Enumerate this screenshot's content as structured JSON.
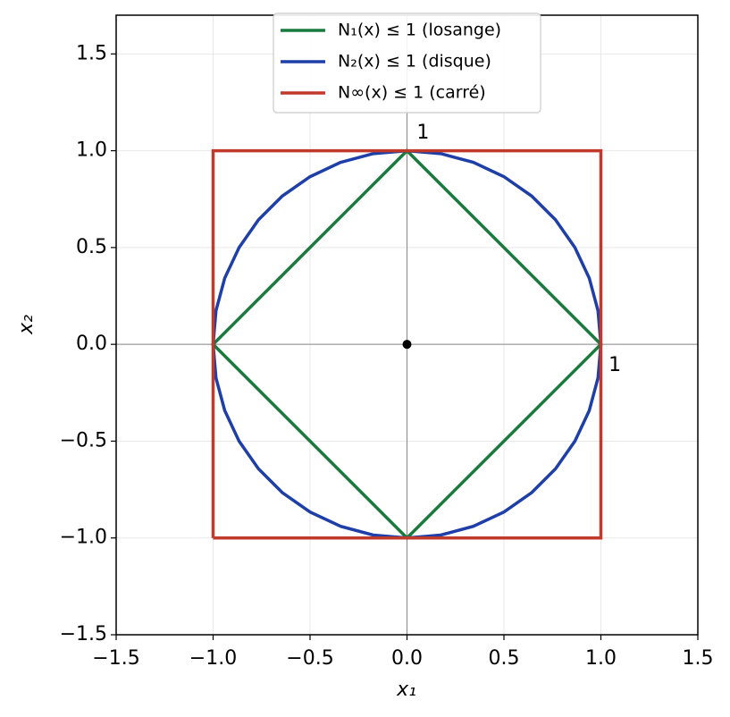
{
  "chart_data": {
    "type": "line",
    "xlabel": "x₁",
    "ylabel": "x₂",
    "xlim": [
      -1.5,
      1.5
    ],
    "ylim": [
      -1.5,
      1.7
    ],
    "xticks": [
      {
        "value": -1.5,
        "label": "−1.5"
      },
      {
        "value": -1.0,
        "label": "−1.0"
      },
      {
        "value": -0.5,
        "label": "−0.5"
      },
      {
        "value": 0,
        "label": "0.0"
      },
      {
        "value": 0.5,
        "label": "0.5"
      },
      {
        "value": 1.0,
        "label": "1.0"
      },
      {
        "value": 1.5,
        "label": "1.5"
      }
    ],
    "yticks": [
      {
        "value": -1.5,
        "label": "−1.5"
      },
      {
        "value": -1.0,
        "label": "−1.0"
      },
      {
        "value": -0.5,
        "label": "−0.5"
      },
      {
        "value": 0,
        "label": "0.0"
      },
      {
        "value": 0.5,
        "label": "0.5"
      },
      {
        "value": 1.0,
        "label": "1.0"
      },
      {
        "value": 1.5,
        "label": "1.5"
      }
    ],
    "grid": true,
    "zero_lines": true,
    "legend": "upper center",
    "series": [
      {
        "name": "N₁(x) ≤ 1 (losange)",
        "color": "#1a7a3e",
        "x": [
          1,
          0,
          -1,
          0,
          1
        ],
        "values": [
          0,
          1,
          0,
          -1,
          0
        ]
      },
      {
        "name": "N₂(x) ≤ 1 (disque)",
        "color": "#1f3fa8",
        "x": [
          1,
          0.985,
          0.94,
          0.866,
          0.766,
          0.643,
          0.5,
          0.342,
          0.174,
          0,
          -0.174,
          -0.342,
          -0.5,
          -0.643,
          -0.766,
          -0.866,
          -0.94,
          -0.985,
          -1,
          -0.985,
          -0.94,
          -0.866,
          -0.766,
          -0.643,
          -0.5,
          -0.342,
          -0.174,
          0,
          0.174,
          0.342,
          0.5,
          0.643,
          0.766,
          0.866,
          0.94,
          0.985,
          1
        ],
        "values": [
          0,
          0.174,
          0.342,
          0.5,
          0.643,
          0.766,
          0.866,
          0.94,
          0.985,
          1,
          0.985,
          0.94,
          0.866,
          0.766,
          0.643,
          0.5,
          0.342,
          0.174,
          0,
          -0.174,
          -0.342,
          -0.5,
          -0.643,
          -0.766,
          -0.866,
          -0.94,
          -0.985,
          -1,
          -0.985,
          -0.94,
          -0.866,
          -0.766,
          -0.643,
          -0.5,
          -0.342,
          -0.174,
          0
        ]
      },
      {
        "name": "N∞(x) ≤ 1 (carré)",
        "color": "#c0392b",
        "x": [
          -1,
          1,
          1,
          -1,
          -1
        ],
        "values": [
          -1,
          -1,
          1,
          1,
          -1
        ]
      }
    ],
    "marker": {
      "x": [
        0
      ],
      "values": [
        0
      ],
      "color": "#000000"
    },
    "annotations": [
      {
        "text": "1",
        "x": 0.05,
        "y": 1.09
      },
      {
        "text": "1",
        "x": 1.04,
        "y": -0.11
      }
    ]
  }
}
